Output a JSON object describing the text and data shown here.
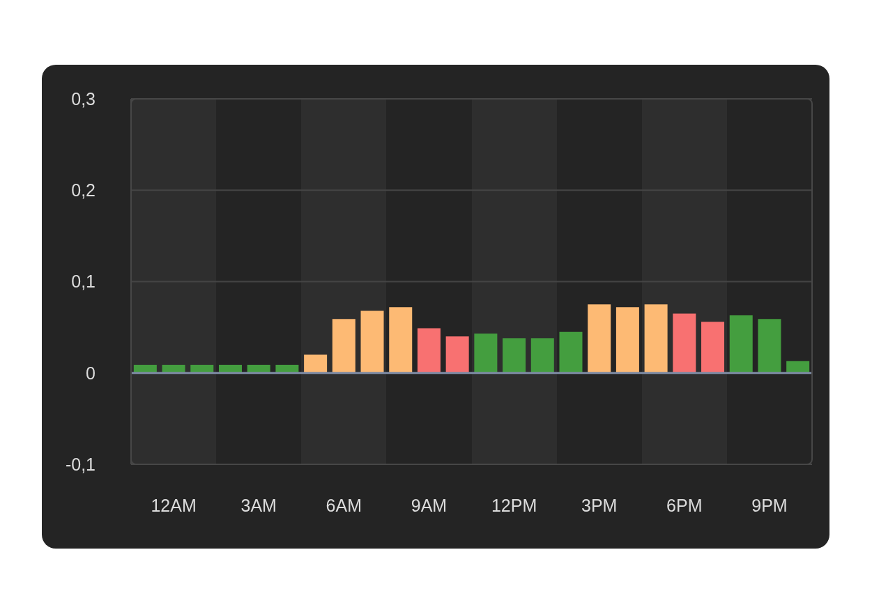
{
  "chart_data": {
    "type": "bar",
    "categories": [
      null,
      "12AM",
      null,
      null,
      "3AM",
      null,
      null,
      "6AM",
      null,
      null,
      "9AM",
      null,
      null,
      "12PM",
      null,
      null,
      "3PM",
      null,
      null,
      "6PM",
      null,
      null,
      "9PM",
      null
    ],
    "values": [
      0.009,
      0.009,
      0.009,
      0.009,
      0.009,
      0.009,
      0.02,
      0.059,
      0.068,
      0.072,
      0.049,
      0.04,
      0.043,
      0.038,
      0.038,
      0.045,
      0.075,
      0.072,
      0.075,
      0.065,
      0.056,
      0.063,
      0.059,
      0.013
    ],
    "colors": [
      "#449e3f",
      "#449e3f",
      "#449e3f",
      "#449e3f",
      "#449e3f",
      "#449e3f",
      "#fdba74",
      "#fdba74",
      "#fdba74",
      "#fdba74",
      "#f87171",
      "#f87171",
      "#449e3f",
      "#449e3f",
      "#449e3f",
      "#449e3f",
      "#fdba74",
      "#fdba74",
      "#fdba74",
      "#f87171",
      "#f87171",
      "#449e3f",
      "#449e3f",
      "#449e3f"
    ],
    "ylim": [
      -0.1,
      0.3
    ],
    "yticks": [
      {
        "value": -0.1,
        "label": "-0,1"
      },
      0,
      {
        "value": 0.1,
        "label": "0,1"
      },
      {
        "value": 0.2,
        "label": "0,2"
      },
      {
        "value": 0.3,
        "label": "0,3"
      }
    ],
    "grid": "y",
    "ref_lines": [
      {
        "axis": "y",
        "value": 0,
        "color": "#7d8aa3"
      }
    ]
  }
}
